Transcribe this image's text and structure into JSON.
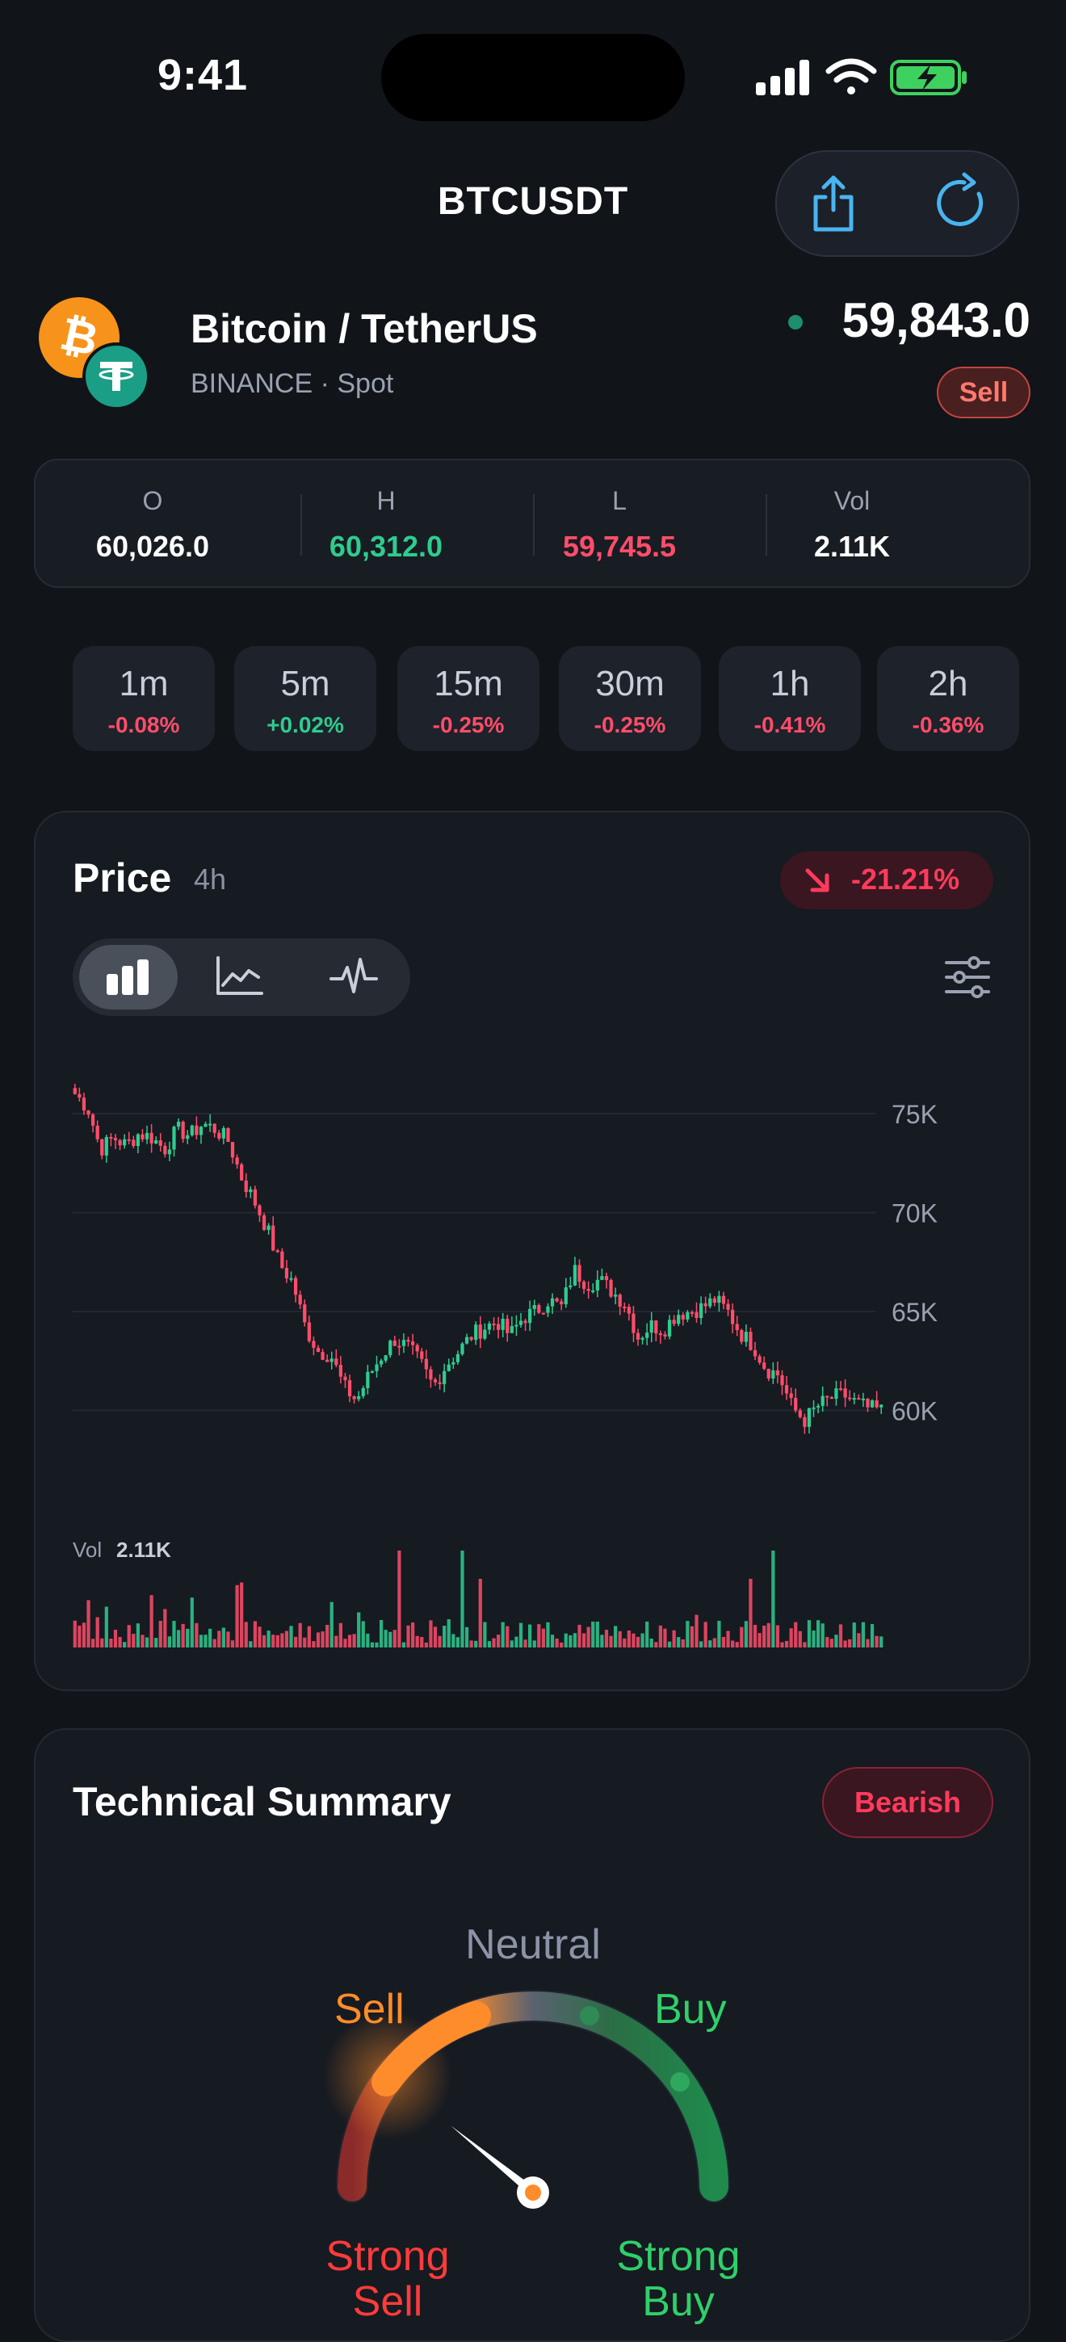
{
  "status": {
    "time": "9:41"
  },
  "header": {
    "title": "BTCUSDT",
    "actions": [
      "share-icon",
      "refresh-icon"
    ]
  },
  "pair": {
    "name": "Bitcoin / TetherUS",
    "subtitle": "BINANCE · Spot",
    "price": "59,843.0",
    "signal": "Sell"
  },
  "ohlv": [
    {
      "label": "O",
      "value": "60,026.0",
      "color": "#ffffff"
    },
    {
      "label": "H",
      "value": "60,312.0",
      "color": "#2ecc8f"
    },
    {
      "label": "L",
      "value": "59,745.5",
      "color": "#ff4d6a"
    },
    {
      "label": "Vol",
      "value": "2.11K",
      "color": "#ffffff"
    }
  ],
  "timeframes": [
    {
      "tf": "1m",
      "change": "-0.08%",
      "color": "#ff4d6a"
    },
    {
      "tf": "5m",
      "change": "+0.02%",
      "color": "#2ecc8f"
    },
    {
      "tf": "15m",
      "change": "-0.25%",
      "color": "#ff4d6a"
    },
    {
      "tf": "30m",
      "change": "-0.25%",
      "color": "#ff4d6a"
    },
    {
      "tf": "1h",
      "change": "-0.41%",
      "color": "#ff4d6a"
    },
    {
      "tf": "2h",
      "change": "-0.36%",
      "color": "#ff4d6a"
    }
  ],
  "price_card": {
    "title": "Price",
    "interval": "4h",
    "change": "-21.21%",
    "chart_types": [
      "candles-icon",
      "line-chart-icon",
      "pulse-icon"
    ],
    "volume_label": "Vol",
    "volume_value": "2.11K"
  },
  "chart_data": {
    "type": "candlestick",
    "ylim": [
      57000,
      77000
    ],
    "y_ticks": [
      "75K",
      "70K",
      "65K",
      "60K"
    ],
    "y_tick_values": [
      75000,
      70000,
      65000,
      60000
    ],
    "up_color": "#2ecc8f",
    "down_color": "#ff4d6a",
    "close_path": [
      76000,
      75300,
      73200,
      73800,
      73400,
      74000,
      73800,
      73200,
      74200,
      73900,
      74500,
      74200,
      73600,
      71800,
      70600,
      69200,
      67400,
      66500,
      64200,
      63000,
      62800,
      61200,
      60500,
      61800,
      62800,
      63600,
      63200,
      62400,
      61200,
      62300,
      63000,
      63800,
      64200,
      64500,
      63800,
      64700,
      65000,
      65600,
      65200,
      67100,
      66400,
      66600,
      66000,
      65400,
      63700,
      64300,
      64100,
      64900,
      65000,
      65200,
      65600,
      65000,
      63900,
      63300,
      62100,
      61800,
      60200,
      59500,
      60200,
      60600,
      60800,
      60400,
      60100,
      60000
    ]
  },
  "technical": {
    "title": "Technical Summary",
    "sentiment": "Bearish",
    "labels": {
      "neutral": "Neutral",
      "sell": "Sell",
      "buy": "Buy",
      "strong_sell": "Strong\nSell",
      "strong_buy": "Strong\nBuy"
    },
    "needle_value": 0.27
  }
}
